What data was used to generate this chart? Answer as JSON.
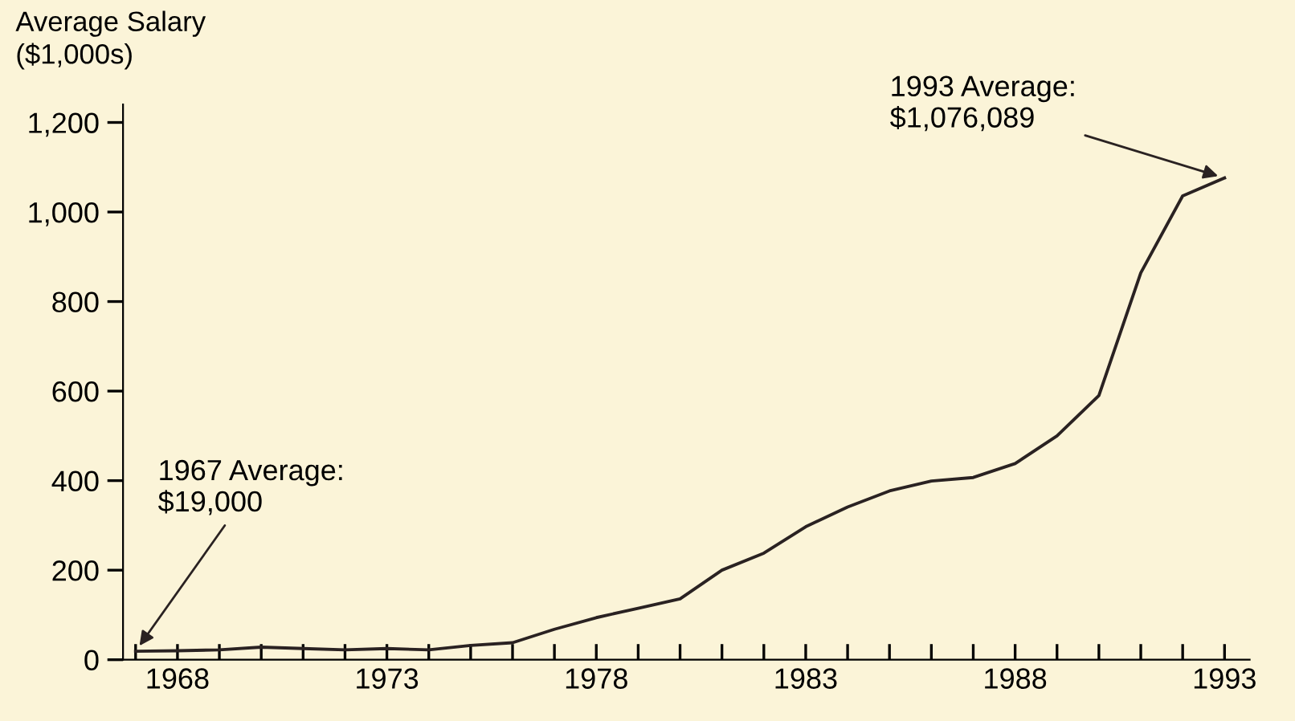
{
  "chart_data": {
    "type": "line",
    "ylabel": "Average Salary\n($1,000s)",
    "x": [
      1967,
      1968,
      1969,
      1970,
      1971,
      1972,
      1973,
      1974,
      1975,
      1976,
      1977,
      1978,
      1979,
      1980,
      1981,
      1982,
      1983,
      1984,
      1985,
      1986,
      1987,
      1988,
      1989,
      1990,
      1991,
      1992,
      1993
    ],
    "series": [
      {
        "color": "#2a2222",
        "values": [
          19,
          20,
          22,
          28,
          25,
          22,
          25,
          22,
          32,
          38,
          68,
          94,
          115,
          136,
          200,
          238,
          297,
          341,
          377,
          399,
          407,
          438,
          500,
          590,
          864,
          1036,
          1076
        ]
      }
    ],
    "xlim": [
      1966.7,
      1993.6
    ],
    "ylim": [
      0,
      1240
    ],
    "xticks": [
      {
        "value": 1967,
        "label": null
      },
      1968,
      {
        "value": 1969,
        "label": null
      },
      {
        "value": 1970,
        "label": null
      },
      {
        "value": 1971,
        "label": null
      },
      {
        "value": 1972,
        "label": null
      },
      1973,
      {
        "value": 1974,
        "label": null
      },
      {
        "value": 1975,
        "label": null
      },
      {
        "value": 1976,
        "label": null
      },
      {
        "value": 1977,
        "label": null
      },
      1978,
      {
        "value": 1979,
        "label": null
      },
      {
        "value": 1980,
        "label": null
      },
      {
        "value": 1981,
        "label": null
      },
      {
        "value": 1982,
        "label": null
      },
      1983,
      {
        "value": 1984,
        "label": null
      },
      {
        "value": 1985,
        "label": null
      },
      {
        "value": 1986,
        "label": null
      },
      {
        "value": 1987,
        "label": null
      },
      1988,
      {
        "value": 1989,
        "label": null
      },
      {
        "value": 1990,
        "label": null
      },
      {
        "value": 1991,
        "label": null
      },
      {
        "value": 1992,
        "label": null
      },
      1993
    ],
    "yticks": [
      0,
      200,
      400,
      600,
      800,
      {
        "value": 1000,
        "label": "1,000"
      },
      {
        "value": 1200,
        "label": "1,200"
      }
    ],
    "annotations": [
      {
        "text": "1967 Average:\n$19,000",
        "x": 1967,
        "y": 19
      },
      {
        "text": "1993 Average:\n$1,076,089",
        "x": 1993,
        "y": 1076
      }
    ],
    "grid": false,
    "marker": "none",
    "line_style": "solid"
  }
}
